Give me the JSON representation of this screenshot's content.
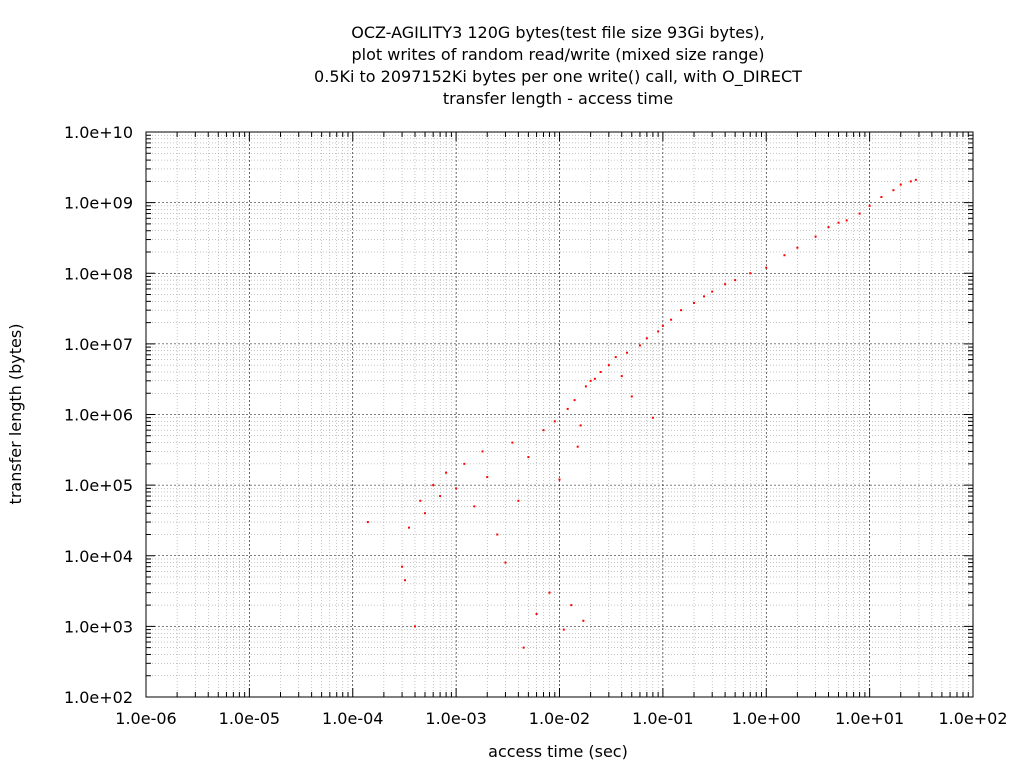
{
  "chart_data": {
    "type": "scatter",
    "title_lines": [
      "OCZ-AGILITY3 120G bytes(test file size 93Gi bytes),",
      "plot writes of random read/write (mixed size range)",
      "0.5Ki to 2097152Ki bytes per one write() call, with O_DIRECT",
      "transfer length - access time"
    ],
    "xlabel": "access time (sec)",
    "ylabel": "transfer length (bytes)",
    "xscale": "log",
    "yscale": "log",
    "xlim": [
      1e-06,
      100
    ],
    "ylim": [
      100,
      10000000000.0
    ],
    "x_ticks": [
      {
        "value": 1e-06,
        "label": "1.0e-06"
      },
      {
        "value": 1e-05,
        "label": "1.0e-05"
      },
      {
        "value": 0.0001,
        "label": "1.0e-04"
      },
      {
        "value": 0.001,
        "label": "1.0e-03"
      },
      {
        "value": 0.01,
        "label": "1.0e-02"
      },
      {
        "value": 0.1,
        "label": "1.0e-01"
      },
      {
        "value": 1,
        "label": "1.0e+00"
      },
      {
        "value": 10,
        "label": "1.0e+01"
      },
      {
        "value": 100,
        "label": "1.0e+02"
      }
    ],
    "y_ticks": [
      {
        "value": 100,
        "label": "1.0e+02"
      },
      {
        "value": 1000,
        "label": "1.0e+03"
      },
      {
        "value": 10000,
        "label": "1.0e+04"
      },
      {
        "value": 100000,
        "label": "1.0e+05"
      },
      {
        "value": 1000000,
        "label": "1.0e+06"
      },
      {
        "value": 10000000,
        "label": "1.0e+07"
      },
      {
        "value": 100000000,
        "label": "1.0e+08"
      },
      {
        "value": 1000000000,
        "label": "1.0e+09"
      },
      {
        "value": 10000000000,
        "label": "1.0e+10"
      }
    ],
    "grid": true,
    "minor_grid": true,
    "legend": "none",
    "point_color": "#ff0000",
    "series": [
      {
        "points": [
          [
            0.00014,
            30000
          ],
          [
            0.0003,
            7000
          ],
          [
            0.00032,
            4500
          ],
          [
            0.00035,
            25000
          ],
          [
            0.0004,
            1000
          ],
          [
            0.00045,
            60000
          ],
          [
            0.0005,
            40000
          ],
          [
            0.0006,
            100000
          ],
          [
            0.0007,
            70000
          ],
          [
            0.0008,
            150000
          ],
          [
            0.001,
            90000
          ],
          [
            0.0012,
            200000
          ],
          [
            0.0015,
            50000
          ],
          [
            0.0018,
            300000
          ],
          [
            0.002,
            130000
          ],
          [
            0.0025,
            20000
          ],
          [
            0.003,
            8000
          ],
          [
            0.0035,
            400000
          ],
          [
            0.004,
            60000
          ],
          [
            0.0045,
            500
          ],
          [
            0.005,
            250000
          ],
          [
            0.006,
            1500
          ],
          [
            0.007,
            600000
          ],
          [
            0.008,
            3000
          ],
          [
            0.009,
            800000
          ],
          [
            0.01,
            120000
          ],
          [
            0.011,
            900
          ],
          [
            0.012,
            1200000
          ],
          [
            0.013,
            2000
          ],
          [
            0.014,
            1600000
          ],
          [
            0.015,
            350000
          ],
          [
            0.016,
            700000
          ],
          [
            0.017,
            1200
          ],
          [
            0.018,
            2500000
          ],
          [
            0.02,
            3000000
          ],
          [
            0.022,
            3200000
          ],
          [
            0.025,
            4000000
          ],
          [
            0.03,
            5000000
          ],
          [
            0.035,
            6500000
          ],
          [
            0.04,
            3500000
          ],
          [
            0.045,
            7500000
          ],
          [
            0.05,
            1800000
          ],
          [
            0.06,
            9500000
          ],
          [
            0.07,
            12000000
          ],
          [
            0.08,
            900000
          ],
          [
            0.09,
            15000000
          ],
          [
            0.1,
            18000000
          ],
          [
            0.12,
            22000000
          ],
          [
            0.15,
            30000000
          ],
          [
            0.2,
            38000000
          ],
          [
            0.25,
            47000000
          ],
          [
            0.3,
            55000000
          ],
          [
            0.4,
            70000000
          ],
          [
            0.5,
            80000000
          ],
          [
            0.7,
            100000000
          ],
          [
            1,
            120000000
          ],
          [
            1.5,
            180000000
          ],
          [
            2,
            230000000
          ],
          [
            3,
            330000000
          ],
          [
            4,
            450000000
          ],
          [
            5,
            520000000
          ],
          [
            6,
            560000000
          ],
          [
            8,
            700000000
          ],
          [
            10,
            900000000
          ],
          [
            13,
            1200000000
          ],
          [
            17,
            1500000000
          ],
          [
            20,
            1800000000
          ],
          [
            25,
            2000000000
          ],
          [
            28,
            2100000000
          ]
        ]
      }
    ]
  }
}
